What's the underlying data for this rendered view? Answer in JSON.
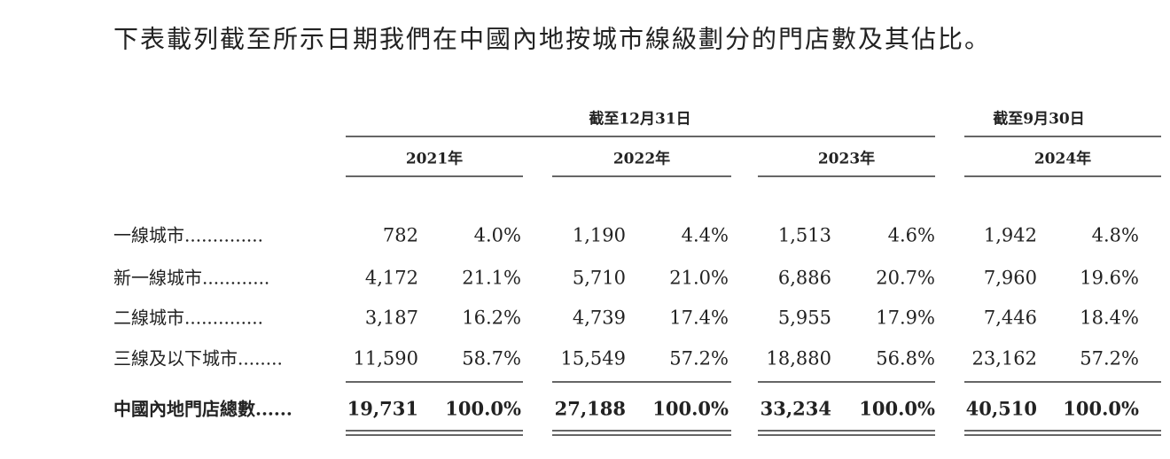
{
  "intro": "下表載列截至所示日期我們在中國內地按城市線級劃分的門店數及其佔比。",
  "table": {
    "group_headers": [
      "截至12月31日",
      "截至9月30日"
    ],
    "years": [
      "2021年",
      "2022年",
      "2023年",
      "2024年"
    ],
    "rows": [
      {
        "label": "一線城市..............",
        "cells": [
          "782",
          "4.0%",
          "1,190",
          "4.4%",
          "1,513",
          "4.6%",
          "1,942",
          "4.8%"
        ]
      },
      {
        "label": "新一線城市............",
        "cells": [
          "4,172",
          "21.1%",
          "5,710",
          "21.0%",
          "6,886",
          "20.7%",
          "7,960",
          "19.6%"
        ]
      },
      {
        "label": "二線城市..............",
        "cells": [
          "3,187",
          "16.2%",
          "4,739",
          "17.4%",
          "5,955",
          "17.9%",
          "7,446",
          "18.4%"
        ]
      },
      {
        "label": "三線及以下城市........",
        "cells": [
          "11,590",
          "58.7%",
          "15,549",
          "57.2%",
          "18,880",
          "56.8%",
          "23,162",
          "57.2%"
        ]
      },
      {
        "label": "中國內地門店總數......",
        "cells": [
          "19,731",
          "100.0%",
          "27,188",
          "100.0%",
          "33,234",
          "100.0%",
          "40,510",
          "100.0%"
        ]
      }
    ]
  }
}
